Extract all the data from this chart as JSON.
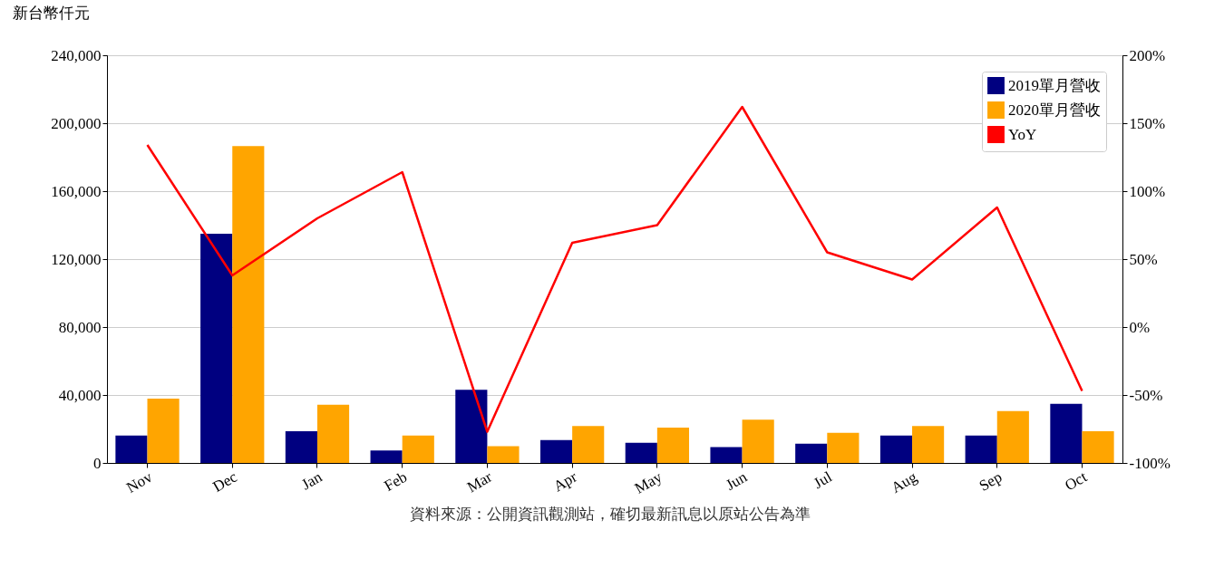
{
  "chart_data": {
    "type": "bar",
    "ylabel": "新台幣仟元",
    "categories": [
      "Nov",
      "Dec",
      "Jan",
      "Feb",
      "Mar",
      "Apr",
      "May",
      "Jun",
      "Jul",
      "Aug",
      "Sep",
      "Oct"
    ],
    "series": [
      {
        "name": "2019單月營收",
        "color": "#000080",
        "values": [
          16100,
          135000,
          18700,
          7300,
          43100,
          13500,
          11900,
          9400,
          11400,
          16100,
          16100,
          34800
        ]
      },
      {
        "name": "2020單月營收",
        "color": "#ffa500",
        "values": [
          37900,
          186500,
          34300,
          16100,
          9900,
          21800,
          20800,
          25500,
          17700,
          21800,
          30600,
          18700
        ]
      },
      {
        "name": "YoY",
        "type": "line",
        "axis": "y2",
        "color": "#ff0000",
        "values": [
          134,
          38,
          80,
          114,
          -77,
          62,
          75,
          162,
          55,
          35,
          88,
          -47
        ]
      }
    ],
    "ylim": [
      0,
      240000
    ],
    "yticks": [
      {
        "value": 0,
        "label": "0"
      },
      {
        "value": 40000,
        "label": "40,000"
      },
      {
        "value": 80000,
        "label": "80,000"
      },
      {
        "value": 120000,
        "label": "120,000"
      },
      {
        "value": 160000,
        "label": "160,000"
      },
      {
        "value": 200000,
        "label": "200,000"
      },
      {
        "value": 240000,
        "label": "240,000"
      }
    ],
    "y2lim": [
      -100,
      200
    ],
    "y2ticks": [
      {
        "value": -100,
        "label": "-100%"
      },
      {
        "value": -50,
        "label": "-50%"
      },
      {
        "value": 0,
        "label": "0%"
      },
      {
        "value": 50,
        "label": "50%"
      },
      {
        "value": 100,
        "label": "100%"
      },
      {
        "value": 150,
        "label": "150%"
      },
      {
        "value": 200,
        "label": "200%"
      }
    ],
    "grid": "y",
    "legend": "top right",
    "annotations": [
      "資料來源：公開資訊觀測站，確切最新訊息以原站公告為準"
    ]
  }
}
